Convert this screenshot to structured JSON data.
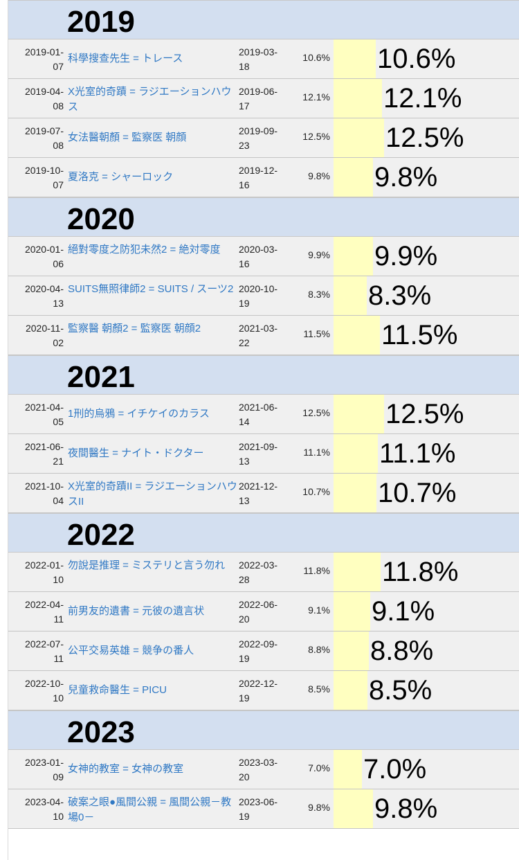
{
  "groups": [
    {
      "year": "2019",
      "rows": [
        {
          "start": "2019-01-\n07",
          "title": "科學搜查先生 = トレース",
          "end": "2019-03-\n18",
          "rating": "10.6%",
          "value": 10.6
        },
        {
          "start": "2019-04-\n08",
          "title": "X光室的奇蹟 = ラジエーションハウス",
          "end": "2019-06-\n17",
          "rating": "12.1%",
          "value": 12.1
        },
        {
          "start": "2019-07-\n08",
          "title": "女法醫朝顏 = 監察医 朝顔",
          "end": "2019-09-\n23",
          "rating": "12.5%",
          "value": 12.5
        },
        {
          "start": "2019-10-\n07",
          "title": "夏洛克 = シャーロック",
          "end": "2019-12-\n16",
          "rating": "9.8%",
          "value": 9.8
        }
      ]
    },
    {
      "year": "2020",
      "rows": [
        {
          "start": "2020-01-\n06",
          "title": "絕對零度之防犯未然2 = 絶対零度",
          "end": "2020-03-\n16",
          "rating": "9.9%",
          "value": 9.9
        },
        {
          "start": "2020-04-\n13",
          "title": "SUITS無照律師2 = SUITS / スーツ2",
          "end": "2020-10-\n19",
          "rating": "8.3%",
          "value": 8.3
        },
        {
          "start": "2020-11-\n02",
          "title": "監察醫 朝顏2 = 監察医 朝顔2",
          "end": "2021-03-\n22",
          "rating": "11.5%",
          "value": 11.5
        }
      ]
    },
    {
      "year": "2021",
      "rows": [
        {
          "start": "2021-04-\n05",
          "title": "1刑的烏鴉 = イチケイのカラス",
          "end": "2021-06-\n14",
          "rating": "12.5%",
          "value": 12.5
        },
        {
          "start": "2021-06-\n21",
          "title": "夜間醫生 = ナイト・ドクター",
          "end": "2021-09-\n13",
          "rating": "11.1%",
          "value": 11.1
        },
        {
          "start": "2021-10-\n04",
          "title": "X光室的奇蹟II = ラジエーションハウスII",
          "end": "2021-12-\n13",
          "rating": "10.7%",
          "value": 10.7
        }
      ]
    },
    {
      "year": "2022",
      "rows": [
        {
          "start": "2022-01-\n10",
          "title": "勿說是推理 = ミステリと言う勿れ",
          "end": "2022-03-\n28",
          "rating": "11.8%",
          "value": 11.8
        },
        {
          "start": "2022-04-\n11",
          "title": "前男友的遺書 = 元彼の遺言状",
          "end": "2022-06-\n20",
          "rating": "9.1%",
          "value": 9.1
        },
        {
          "start": "2022-07-\n11",
          "title": "公平交易英雄 = 競争の番人",
          "end": "2022-09-\n19",
          "rating": "8.8%",
          "value": 8.8
        },
        {
          "start": "2022-10-\n10",
          "title": "兒童救命醫生 = PICU",
          "end": "2022-12-\n19",
          "rating": "8.5%",
          "value": 8.5
        }
      ]
    },
    {
      "year": "2023",
      "rows": [
        {
          "start": "2023-01-\n09",
          "title": "女神的教室 = 女神の教室",
          "end": "2023-03-\n20",
          "rating": "7.0%",
          "value": 7.0
        },
        {
          "start": "2023-04-\n10",
          "title": "破案之眼●風間公親 = 風間公親－教場0－",
          "end": "2023-06-\n19",
          "rating": "9.8%",
          "value": 9.8
        }
      ]
    }
  ],
  "colors": {
    "year_band": "#d3dff0",
    "row_bg": "#f0f0f0",
    "bar": "#ffffc0",
    "link": "#2f78c4"
  }
}
